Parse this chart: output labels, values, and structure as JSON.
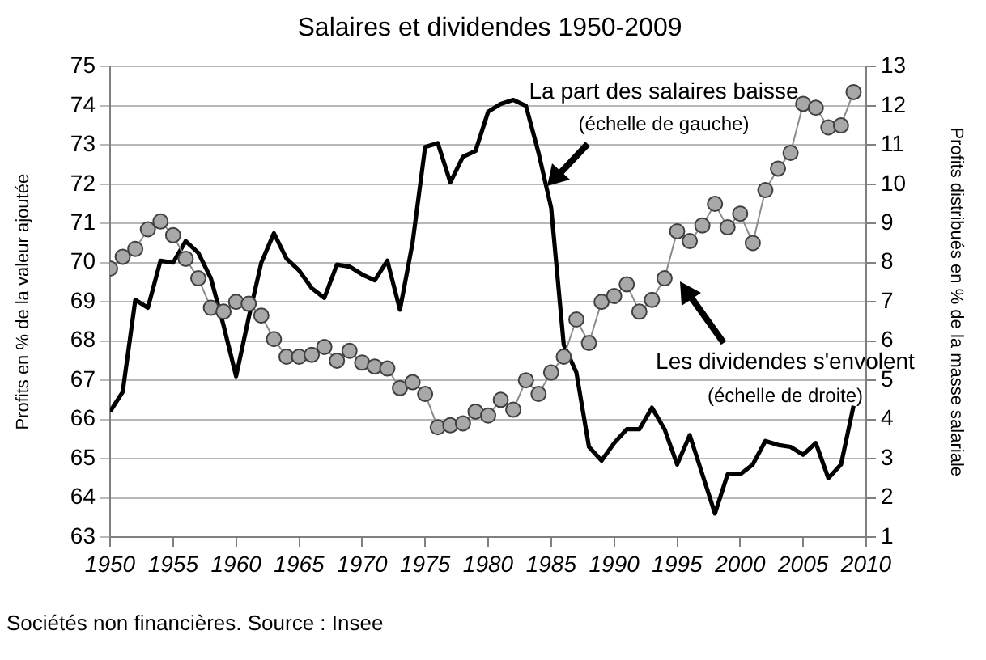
{
  "chart_data": {
    "type": "line",
    "title": "Salaires et dividendes 1950-2009",
    "ylabel": "Profits en % de la valeur ajoutée",
    "y2label": "Profits distribués en % de la masse salariale",
    "x": [
      1950,
      1951,
      1952,
      1953,
      1954,
      1955,
      1956,
      1957,
      1958,
      1959,
      1960,
      1961,
      1962,
      1963,
      1964,
      1965,
      1966,
      1967,
      1968,
      1969,
      1970,
      1971,
      1972,
      1973,
      1974,
      1975,
      1976,
      1977,
      1978,
      1979,
      1980,
      1981,
      1982,
      1983,
      1984,
      1985,
      1986,
      1987,
      1988,
      1989,
      1990,
      1991,
      1992,
      1993,
      1994,
      1995,
      1996,
      1997,
      1998,
      1999,
      2000,
      2001,
      2002,
      2003,
      2004,
      2005,
      2006,
      2007,
      2008,
      2009
    ],
    "series": [
      {
        "color": "#000000",
        "axis": "y",
        "marker": "none",
        "values": [
          66.2,
          66.7,
          69.05,
          68.85,
          70.05,
          70.0,
          70.55,
          70.25,
          69.6,
          68.4,
          67.1,
          68.6,
          70.0,
          70.75,
          70.1,
          69.8,
          69.35,
          69.1,
          69.95,
          69.9,
          69.7,
          69.55,
          70.05,
          68.8,
          70.5,
          72.95,
          73.05,
          72.05,
          72.7,
          72.85,
          73.85,
          74.05,
          74.15,
          74.0,
          72.8,
          71.4,
          67.9,
          67.2,
          65.3,
          64.95,
          65.4,
          65.75,
          65.75,
          66.3,
          65.75,
          64.85,
          65.6,
          64.6,
          63.6,
          64.6,
          64.6,
          64.85,
          65.45,
          65.35,
          65.3,
          65.1,
          65.4,
          64.5,
          64.85,
          66.35
        ]
      },
      {
        "color": "#8c8c8c",
        "axis": "y2",
        "marker": "circle",
        "values": [
          7.85,
          8.15,
          8.35,
          8.85,
          9.05,
          8.7,
          8.1,
          7.6,
          6.85,
          6.75,
          7.0,
          6.95,
          6.65,
          6.05,
          5.6,
          5.6,
          5.65,
          5.85,
          5.5,
          5.75,
          5.45,
          5.35,
          5.3,
          4.8,
          4.95,
          4.65,
          3.8,
          3.85,
          3.9,
          4.2,
          4.1,
          4.5,
          4.25,
          5.0,
          4.65,
          5.2,
          5.6,
          6.55,
          5.95,
          7.0,
          7.15,
          7.45,
          6.75,
          7.05,
          7.6,
          8.8,
          8.55,
          8.95,
          9.5,
          8.9,
          9.25,
          8.5,
          9.85,
          10.4,
          10.8,
          12.05,
          11.95,
          11.45,
          11.5,
          12.35
        ]
      }
    ],
    "xlim": [
      1950,
      2010
    ],
    "xticks": [
      1950,
      1955,
      1960,
      1965,
      1970,
      1975,
      1980,
      1985,
      1990,
      1995,
      2000,
      2005,
      2010
    ],
    "ylim": [
      63,
      75
    ],
    "yticks": [
      63,
      64,
      65,
      66,
      67,
      68,
      69,
      70,
      71,
      72,
      73,
      74,
      75
    ],
    "y2lim": [
      1,
      13
    ],
    "y2ticks": [
      1,
      2,
      3,
      4,
      5,
      6,
      7,
      8,
      9,
      10,
      11,
      12,
      13
    ],
    "grid": "y",
    "legend": false,
    "line_style": "solid",
    "annotations": [
      "La part des salaires baisse",
      "(échelle de gauche)",
      "Les dividendes s'envolent",
      "(échelle de droite)",
      "Sociétés non financières. Source : Insee"
    ]
  }
}
